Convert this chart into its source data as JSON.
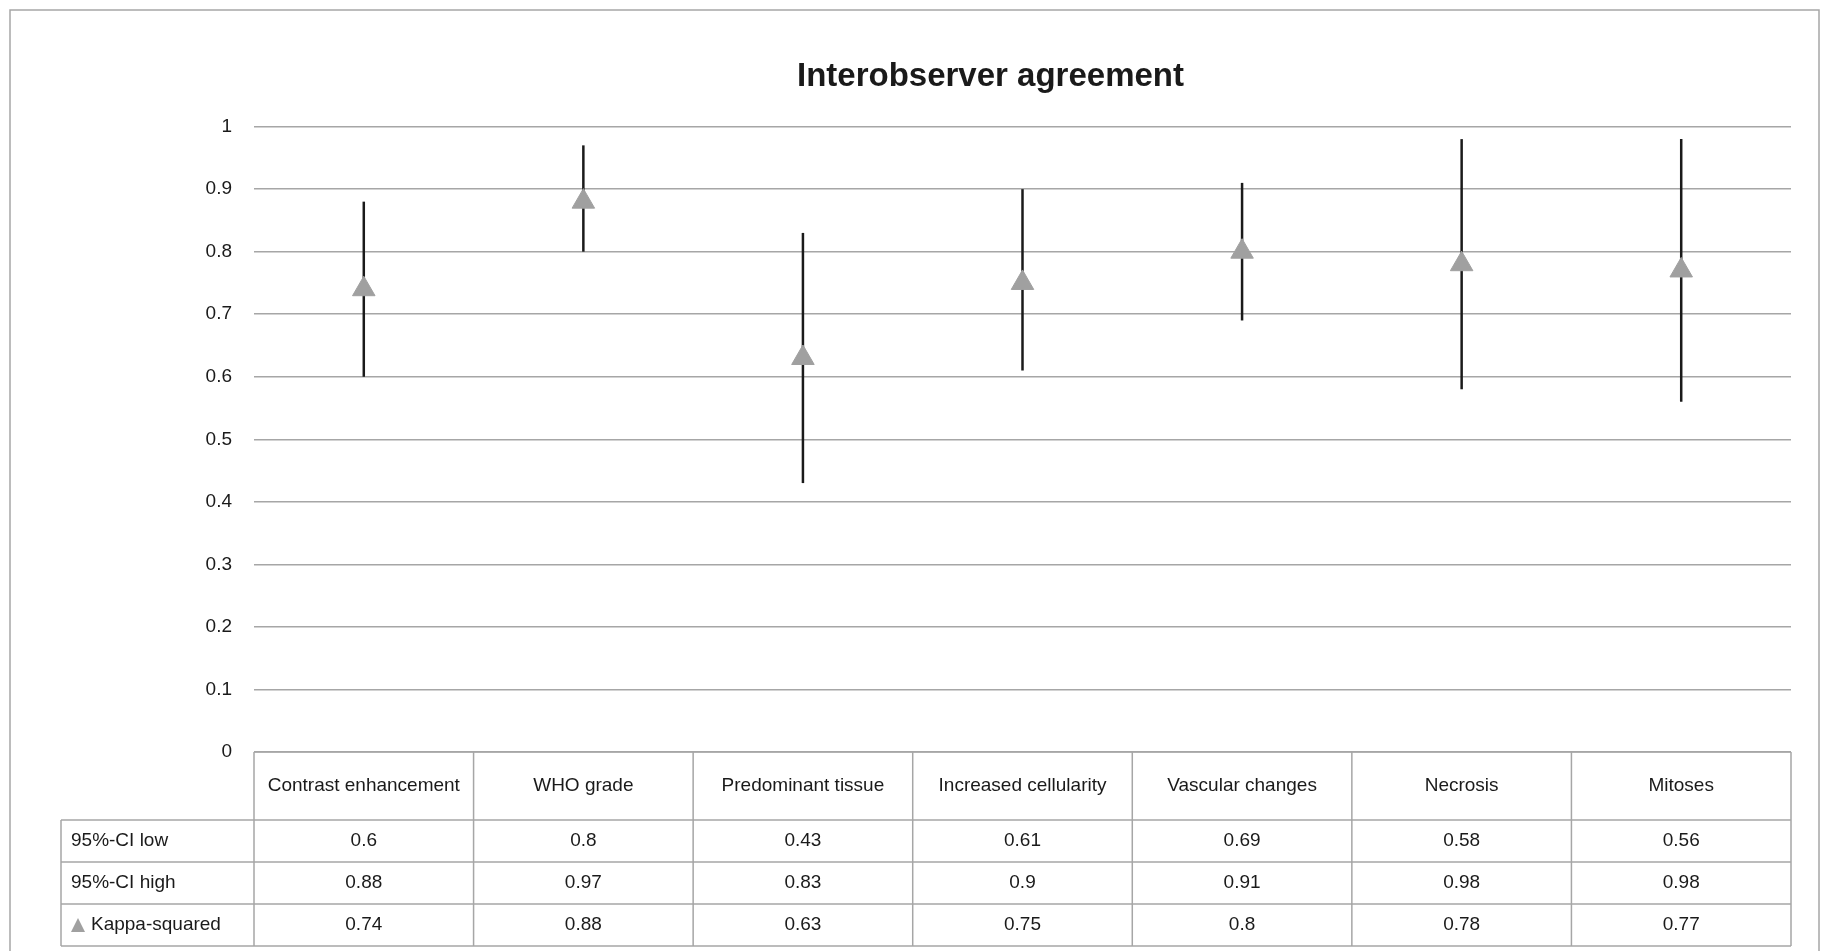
{
  "chart_data": {
    "type": "scatter",
    "title": "Interobserver agreement",
    "categories": [
      "Contrast enhancement",
      "WHO grade",
      "Predominant tissue",
      "Increased cellularity",
      "Vascular changes",
      "Necrosis",
      "Mitoses"
    ],
    "series": [
      {
        "name": "Kappa-squared",
        "color": "#a0a0a0",
        "values": [
          0.74,
          0.88,
          0.63,
          0.75,
          0.8,
          0.78,
          0.77
        ],
        "errors": [
          [
            0.6,
            0.88
          ],
          [
            0.8,
            0.97
          ],
          [
            0.43,
            0.83
          ],
          [
            0.61,
            0.9
          ],
          [
            0.69,
            0.91
          ],
          [
            0.58,
            0.98
          ],
          [
            0.56,
            0.98
          ]
        ]
      }
    ],
    "annotations": [
      "95%-CI low",
      "0.6",
      "0.8",
      "0.43",
      "0.61",
      "0.69",
      "0.58",
      "0.56",
      "95%-CI high",
      "0.88",
      "0.97",
      "0.83",
      "0.9",
      "0.91",
      "0.98",
      "0.98"
    ],
    "ylim": [
      0,
      1
    ],
    "yticks": [
      0,
      0.1,
      0.2,
      0.3,
      0.4,
      0.5,
      0.6,
      0.7,
      0.8,
      0.9,
      1
    ],
    "grid": "y",
    "marker": "triangle",
    "legend": "bottom",
    "data_labels": true
  }
}
